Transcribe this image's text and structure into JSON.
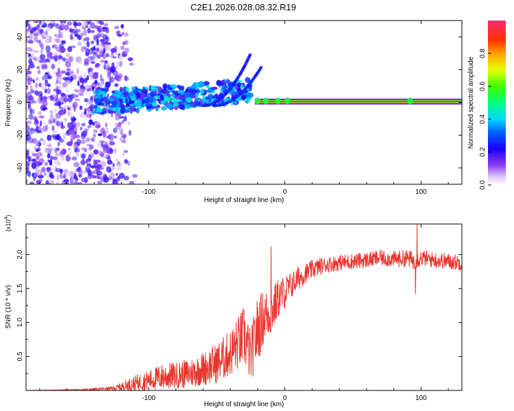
{
  "title": "C2E1.2026.028.08.32.R19",
  "colors": {
    "axis": "#000000",
    "snr_line": "#e8352e",
    "background": "#ffffff"
  },
  "chart_data": [
    {
      "type": "heatmap",
      "title": "C2E1.2026.028.08.32.R19",
      "xlabel": "Height of straight line (km)",
      "ylabel": "Frequency (Hz)",
      "xlim": [
        -190,
        130
      ],
      "ylim": [
        -50,
        50
      ],
      "xticks": [
        -100,
        0,
        100
      ],
      "yticks": [
        -40,
        -20,
        0,
        20,
        40
      ],
      "features": [
        {
          "name": "noise-scatter",
          "x_range": [
            -190,
            -120
          ],
          "y_range": [
            -50,
            50
          ],
          "amplitude": 0.2
        },
        {
          "name": "diffuse-band",
          "x_range": [
            -140,
            -70
          ],
          "y_center": 0,
          "amplitude": 0.35
        },
        {
          "name": "rising-streak",
          "x_range": [
            -60,
            -25
          ],
          "y_range": [
            0,
            32
          ],
          "amplitude": 0.2
        },
        {
          "name": "steady-carrier",
          "x_range": [
            -22,
            130
          ],
          "y_center": 0.5,
          "amplitude": 1.0
        }
      ],
      "colorbar": {
        "label": "Normalized spectral amplitude",
        "range": [
          0,
          1
        ],
        "ticks": [
          "0.0",
          "0.2",
          "0.4",
          "0.6",
          "0.8"
        ],
        "tick_values": [
          0.0,
          0.2,
          0.4,
          0.6,
          0.8
        ]
      }
    },
    {
      "type": "line",
      "xlabel": "Height of straight line (km)",
      "ylabel": "SNR (10 * v/v)",
      "exponent_label": "(x10",
      "exponent_value": "4",
      "exponent_close": ")",
      "xlim": [
        -190,
        130
      ],
      "ylim": [
        0,
        2.45
      ],
      "xticks": [
        -100,
        0,
        100
      ],
      "yticks": [
        "0.5",
        "1.0",
        "1.5",
        "2.0"
      ],
      "ytick_values": [
        0.5,
        1.0,
        1.5,
        2.0
      ],
      "series": [
        {
          "name": "SNR",
          "x": [
            -190,
            -150,
            -125,
            -115,
            -100,
            -90,
            -80,
            -70,
            -60,
            -50,
            -40,
            -30,
            -25,
            -20,
            -15,
            -10,
            -5,
            0,
            5,
            10,
            15,
            20,
            25,
            30,
            40,
            50,
            60,
            70,
            80,
            90,
            95,
            100,
            110,
            120,
            130
          ],
          "y": [
            0.0,
            0.01,
            0.03,
            0.08,
            0.15,
            0.2,
            0.22,
            0.25,
            0.32,
            0.4,
            0.55,
            0.8,
            0.5,
            0.9,
            1.1,
            1.15,
            1.35,
            1.45,
            1.55,
            1.65,
            1.72,
            1.78,
            1.82,
            1.85,
            1.88,
            1.9,
            1.92,
            1.95,
            1.93,
            1.95,
            1.9,
            1.95,
            1.92,
            1.9,
            1.88
          ],
          "noise_amplitude": [
            0.0,
            0.01,
            0.03,
            0.1,
            0.15,
            0.2,
            0.2,
            0.22,
            0.25,
            0.3,
            0.35,
            0.45,
            0.4,
            0.5,
            0.4,
            0.35,
            0.3,
            0.25,
            0.2,
            0.18,
            0.15,
            0.14,
            0.13,
            0.12,
            0.12,
            0.12,
            0.12,
            0.12,
            0.12,
            0.13,
            0.14,
            0.12,
            0.12,
            0.12,
            0.12
          ]
        }
      ],
      "peak_values": [
        {
          "x": 97,
          "y": 2.45
        },
        {
          "x": 96,
          "y": 1.42
        },
        {
          "x": -10,
          "y": 2.12
        }
      ]
    }
  ]
}
